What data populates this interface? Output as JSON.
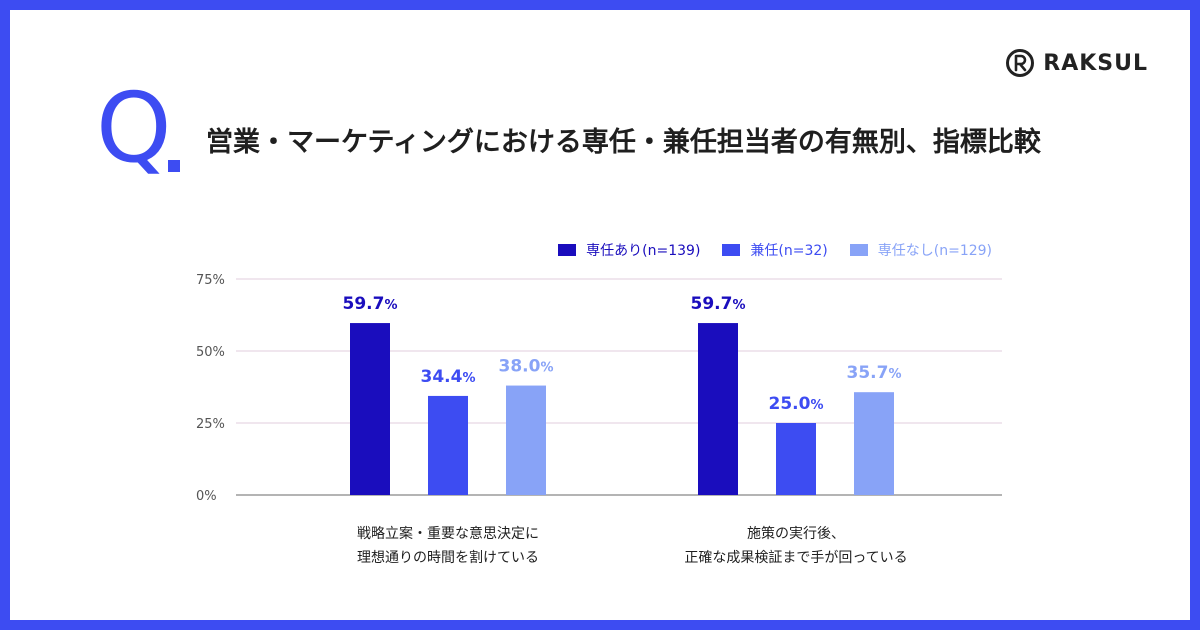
{
  "brand": {
    "name": "RAKSUL"
  },
  "question_mark": "Q",
  "title": "営業・マーケティングにおける専任・兼任担当者の有無別、指標比較",
  "chart_data": {
    "type": "bar",
    "title": "営業・マーケティングにおける専任・兼任担当者の有無別、指標比較",
    "categories": [
      [
        "戦略立案・重要な意思決定に",
        "理想通りの時間を割けている"
      ],
      [
        "施策の実行後、",
        "正確な成果検証まで手が回っている"
      ]
    ],
    "series": [
      {
        "name": "専任あり(n=139)",
        "values": [
          59.7,
          59.7
        ],
        "color": "#1a0dbd"
      },
      {
        "name": "兼任(n=32)",
        "values": [
          34.4,
          25.0
        ],
        "color": "#3d4cf2"
      },
      {
        "name": "専任なし(n=129)",
        "values": [
          38.0,
          35.7
        ],
        "color": "#88a3f7"
      }
    ],
    "value_suffix": "%",
    "yticks": [
      "0%",
      "25%",
      "50%",
      "75%"
    ],
    "ylim": [
      0,
      75
    ],
    "grid": true,
    "legend_position": "top-right"
  }
}
